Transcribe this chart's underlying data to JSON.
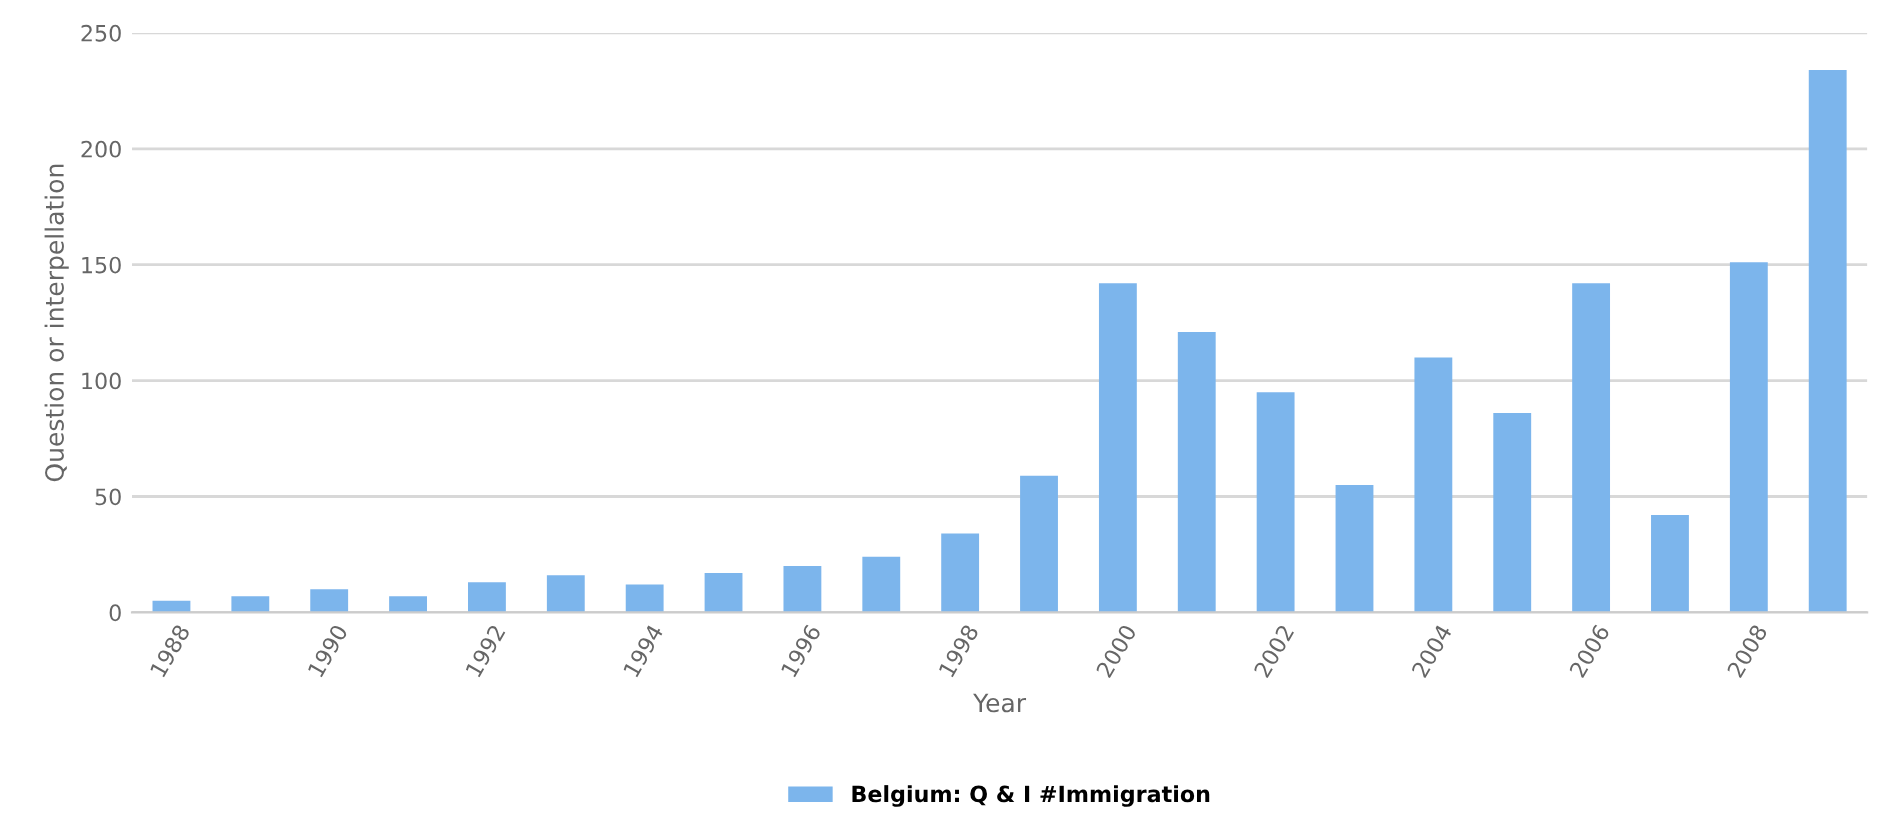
{
  "chart_data": {
    "type": "bar",
    "xlabel": "Year",
    "ylabel": "Question or interpellation",
    "categories": [
      "1988",
      null,
      "1990",
      null,
      "1992",
      null,
      "1994",
      null,
      "1996",
      null,
      "1998",
      null,
      "2000",
      null,
      "2002",
      null,
      "2004",
      null,
      "2006",
      null,
      "2008",
      null
    ],
    "series": [
      {
        "name": "Belgium: Q & I #Immigration",
        "color": "#7cb5ec",
        "values": [
          5,
          7,
          10,
          7,
          13,
          16,
          12,
          17,
          20,
          24,
          34,
          59,
          142,
          121,
          95,
          55,
          110,
          86,
          142,
          42,
          151,
          234
        ]
      }
    ],
    "ylim": [
      0,
      250
    ],
    "yticks": [
      0,
      50,
      100,
      150,
      200,
      250
    ],
    "grid": "y",
    "legend": "bottom"
  }
}
